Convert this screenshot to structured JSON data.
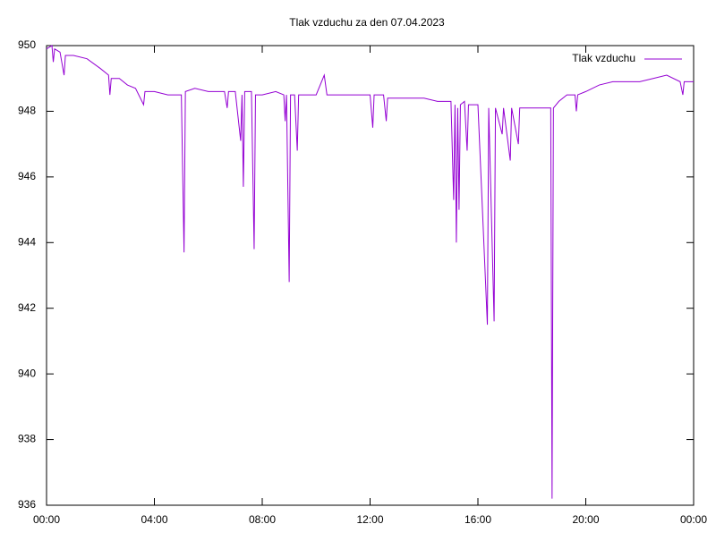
{
  "chart_data": {
    "type": "line",
    "title": "Tlak vzduchu za den 07.04.2023",
    "x": [
      0.0,
      0.2,
      0.25,
      0.3,
      0.5,
      0.65,
      0.7,
      1.0,
      1.5,
      2.0,
      2.3,
      2.35,
      2.4,
      2.7,
      3.0,
      3.3,
      3.6,
      3.65,
      4.0,
      4.5,
      5.0,
      5.1,
      5.15,
      5.5,
      6.0,
      6.6,
      6.7,
      6.75,
      7.0,
      7.2,
      7.25,
      7.3,
      7.35,
      7.6,
      7.7,
      7.75,
      8.0,
      8.5,
      8.8,
      8.85,
      8.9,
      9.0,
      9.05,
      9.2,
      9.3,
      9.35,
      9.5,
      10.0,
      10.3,
      10.4,
      10.5,
      11.0,
      12.0,
      12.1,
      12.15,
      12.5,
      12.6,
      12.65,
      13.0,
      14.0,
      14.5,
      15.0,
      15.1,
      15.15,
      15.2,
      15.25,
      15.3,
      15.35,
      15.5,
      15.6,
      15.65,
      16.0,
      16.35,
      16.4,
      16.6,
      16.65,
      16.9,
      16.95,
      17.2,
      17.25,
      17.5,
      17.55,
      18.0,
      18.7,
      18.75,
      18.8,
      19.0,
      19.3,
      19.6,
      19.65,
      19.7,
      20.0,
      20.5,
      21.0,
      22.0,
      22.5,
      23.0,
      23.5,
      23.6,
      23.65,
      24.0
    ],
    "series": [
      {
        "name": "Tlak vzduchu",
        "color": "#9400d3",
        "values": [
          949.9,
          950.0,
          949.5,
          949.9,
          949.8,
          949.1,
          949.7,
          949.7,
          949.6,
          949.3,
          949.1,
          948.5,
          949.0,
          949.0,
          948.8,
          948.7,
          948.2,
          948.6,
          948.6,
          948.5,
          948.5,
          943.7,
          948.6,
          948.7,
          948.6,
          948.6,
          948.1,
          948.6,
          948.6,
          947.1,
          948.5,
          945.7,
          948.6,
          948.6,
          943.8,
          948.5,
          948.5,
          948.6,
          948.5,
          947.7,
          948.5,
          942.8,
          948.5,
          948.5,
          946.8,
          948.5,
          948.5,
          948.5,
          949.1,
          948.5,
          948.5,
          948.5,
          948.5,
          947.5,
          948.5,
          948.5,
          947.7,
          948.4,
          948.4,
          948.4,
          948.3,
          948.3,
          945.3,
          948.2,
          944.0,
          948.1,
          945.0,
          948.2,
          948.3,
          946.8,
          948.2,
          948.2,
          941.5,
          948.1,
          941.6,
          948.1,
          947.3,
          948.1,
          946.5,
          948.1,
          947.0,
          948.1,
          948.1,
          948.1,
          936.2,
          948.1,
          948.3,
          948.5,
          948.5,
          948.0,
          948.5,
          948.6,
          948.8,
          948.9,
          948.9,
          949.0,
          949.1,
          948.9,
          948.5,
          948.9,
          948.9
        ]
      }
    ],
    "xlim": [
      0,
      24
    ],
    "xticks": [
      {
        "value": 0,
        "label": "00:00"
      },
      {
        "value": 4,
        "label": "04:00"
      },
      {
        "value": 8,
        "label": "08:00"
      },
      {
        "value": 12,
        "label": "12:00"
      },
      {
        "value": 16,
        "label": "16:00"
      },
      {
        "value": 20,
        "label": "20:00"
      },
      {
        "value": 24,
        "label": "00:00"
      }
    ],
    "ylim": [
      936,
      950
    ],
    "yticks": [
      936,
      938,
      940,
      942,
      944,
      946,
      948,
      950
    ],
    "legend": "top-right",
    "grid": false
  }
}
